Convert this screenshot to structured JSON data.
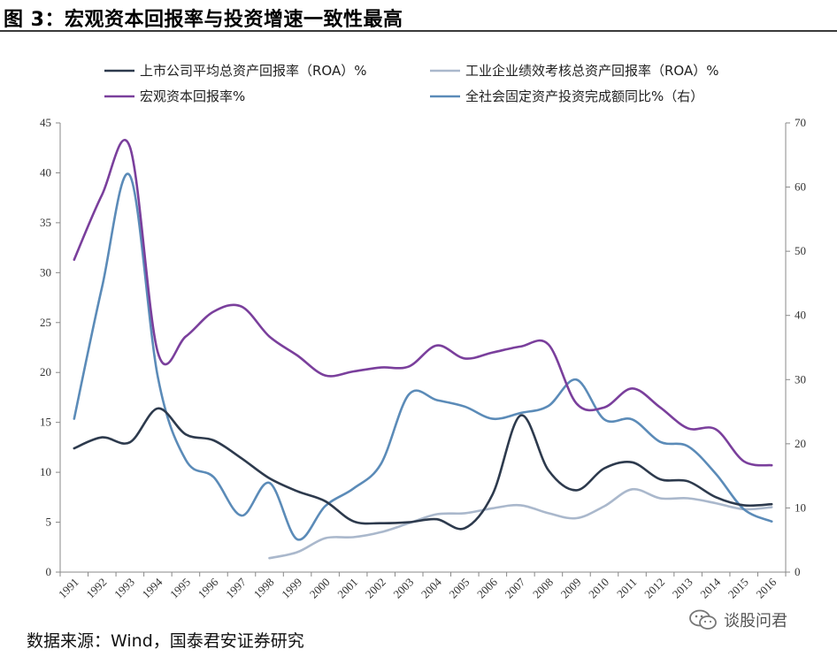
{
  "title": "图 3：宏观资本回报率与投资增速一致性最高",
  "source": "数据来源：Wind，国泰君安证券研究",
  "watermark": "谈股问君",
  "chart_data": {
    "type": "line",
    "x": [
      "1991",
      "1992",
      "1993",
      "1994",
      "1995",
      "1996",
      "1997",
      "1998",
      "1999",
      "2000",
      "2001",
      "2002",
      "2003",
      "2004",
      "2005",
      "2006",
      "2007",
      "2008",
      "2009",
      "2010",
      "2011",
      "2012",
      "2013",
      "2014",
      "2015",
      "2016"
    ],
    "y_left": {
      "ylim": [
        0,
        45
      ],
      "ticks": [
        0,
        5,
        10,
        15,
        20,
        25,
        30,
        35,
        40,
        45
      ]
    },
    "y_right": {
      "ylim": [
        0,
        70
      ],
      "ticks": [
        0,
        10,
        20,
        30,
        40,
        50,
        60,
        70
      ]
    },
    "legend_position": "top",
    "series": [
      {
        "name": "上市公司平均总资产回报率（ROA）%",
        "axis": "left",
        "color": "#2d3a4d",
        "values": [
          12.4,
          13.5,
          13.0,
          16.4,
          13.8,
          13.2,
          11.4,
          9.4,
          8.1,
          7.1,
          5.1,
          4.9,
          5.0,
          5.3,
          4.4,
          7.8,
          15.7,
          10.2,
          8.2,
          10.4,
          11.0,
          9.3,
          9.1,
          7.5,
          6.7,
          6.8
        ]
      },
      {
        "name": "工业企业绩效考核总资产回报率（ROA）%",
        "axis": "left",
        "color": "#aab8cc",
        "values": [
          null,
          null,
          null,
          null,
          null,
          null,
          null,
          1.4,
          2.0,
          3.4,
          3.5,
          4.0,
          4.9,
          5.8,
          5.9,
          6.4,
          6.7,
          5.9,
          5.4,
          6.6,
          8.3,
          7.4,
          7.4,
          6.9,
          6.3,
          6.5
        ]
      },
      {
        "name": "宏观资本回报率%",
        "axis": "left",
        "color": "#7a3f9c",
        "values": [
          31.3,
          37.8,
          42.6,
          22.0,
          23.6,
          26.1,
          26.6,
          23.6,
          21.7,
          19.7,
          20.1,
          20.5,
          20.6,
          22.7,
          21.4,
          22.0,
          22.6,
          22.8,
          16.9,
          16.5,
          18.4,
          16.5,
          14.4,
          14.3,
          11.1,
          10.7
        ]
      },
      {
        "name": "全社会固定资产投资完成额同比%（右）",
        "axis": "right",
        "color": "#5b8bb8",
        "values": [
          23.9,
          44.4,
          61.8,
          30.4,
          17.5,
          14.8,
          8.8,
          13.9,
          5.1,
          10.3,
          13.0,
          16.9,
          27.7,
          26.8,
          25.8,
          23.9,
          24.8,
          25.9,
          30.0,
          23.8,
          23.8,
          20.3,
          19.6,
          15.3,
          9.8,
          7.9
        ]
      }
    ]
  }
}
